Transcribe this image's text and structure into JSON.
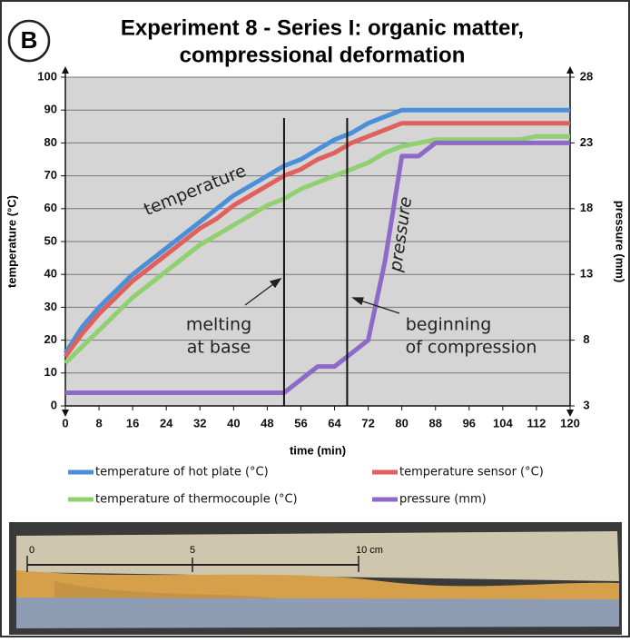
{
  "panel_label": "B",
  "chart_data": {
    "type": "line",
    "title": [
      "Experiment 8 - Series I: organic matter,",
      "compressional deformation"
    ],
    "x_label": "time (min)",
    "y_label": "temperature (°C)",
    "y2_label": "pressure (mm)",
    "x": [
      0,
      4,
      8,
      12,
      16,
      20,
      24,
      28,
      32,
      36,
      40,
      44,
      48,
      52,
      56,
      60,
      64,
      68,
      72,
      76,
      80,
      84,
      88,
      92,
      96,
      100,
      104,
      108,
      112,
      116,
      120
    ],
    "xlim": [
      0,
      120
    ],
    "xticks": [
      0,
      8,
      16,
      24,
      32,
      40,
      48,
      56,
      64,
      72,
      80,
      88,
      96,
      104,
      112,
      120
    ],
    "ylim": [
      0,
      100
    ],
    "yticks": [
      0,
      10,
      20,
      30,
      40,
      50,
      60,
      70,
      80,
      90,
      100
    ],
    "y2lim": [
      3,
      28
    ],
    "y2ticks": [
      3,
      8,
      13,
      18,
      23,
      28
    ],
    "grid": true,
    "series": [
      {
        "name": "temperature of hot plate (°C)",
        "color": "#4a8fd8",
        "values": [
          16,
          24,
          30,
          35,
          40,
          44,
          48,
          52,
          56,
          60,
          64,
          67,
          70,
          73,
          75,
          78,
          81,
          83,
          86,
          88,
          90,
          90,
          90,
          90,
          90,
          90,
          90,
          90,
          90,
          90,
          90
        ]
      },
      {
        "name": "temperature sensor (°C)",
        "color": "#e0605e",
        "values": [
          15,
          22,
          28,
          33,
          38,
          42,
          46,
          50,
          54,
          57,
          61,
          64,
          67,
          70,
          72,
          75,
          77,
          80,
          82,
          84,
          86,
          86,
          86,
          86,
          86,
          86,
          86,
          86,
          86,
          86,
          86
        ]
      },
      {
        "name": "temperature of thermocouple (°C)",
        "color": "#90d070",
        "values": [
          13,
          18,
          23,
          28,
          33,
          37,
          41,
          45,
          49,
          52,
          55,
          58,
          61,
          63,
          66,
          68,
          70,
          72,
          74,
          77,
          79,
          80,
          81,
          81,
          81,
          81,
          81,
          81,
          82,
          82,
          82
        ]
      },
      {
        "name": "pressure (mm)",
        "color": "#8e6ac8",
        "axis": "y2",
        "values": [
          4,
          4,
          4,
          4,
          4,
          4,
          4,
          4,
          4,
          4,
          4,
          4,
          4,
          4,
          5,
          6,
          6,
          7,
          8,
          14,
          22,
          22,
          23,
          23,
          23,
          23,
          23,
          23,
          23,
          23,
          23
        ]
      }
    ],
    "vlines": [
      52,
      67
    ],
    "annotations": [
      "temperature",
      "pressure",
      "melting",
      "at base",
      "beginning",
      "of compression"
    ]
  },
  "photo": {
    "scale_labels": [
      "0",
      "5",
      "10 cm"
    ]
  }
}
